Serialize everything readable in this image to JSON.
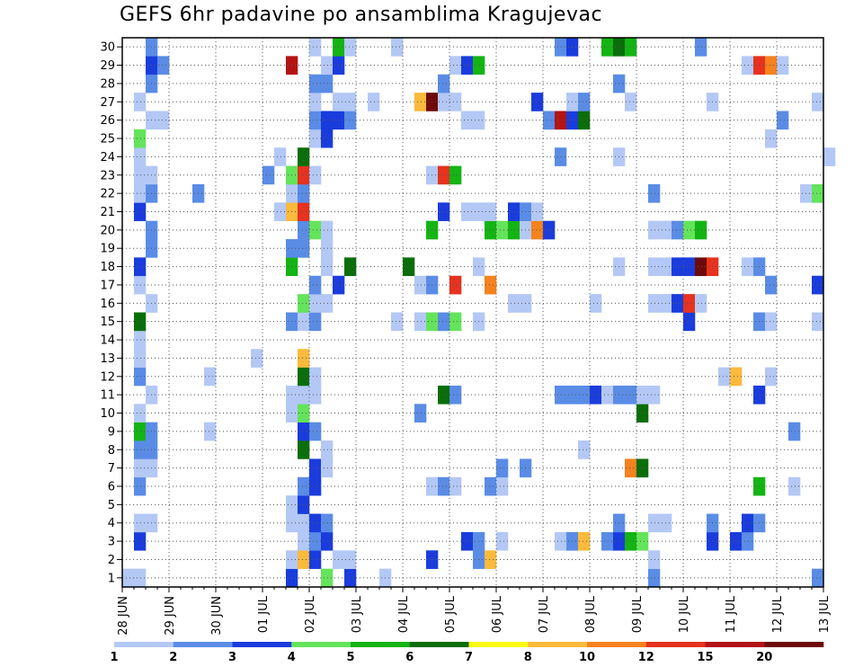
{
  "chart_data": {
    "type": "heatmap",
    "title": "GEFS 6hr padavine po ansamblima Kragujevac",
    "xlabel": "",
    "ylabel": "",
    "x_tick_labels": [
      "28 JUN",
      "29 JUN",
      "30 JUN",
      "01 JUL",
      "02 JUL",
      "03 JUL",
      "04 JUL",
      "05 JUL",
      "06 JUL",
      "07 JUL",
      "08 JUL",
      "09 JUL",
      "10 JUL",
      "11 JUL",
      "12 JUL",
      "13 JUL"
    ],
    "y_tick_labels": [
      "1",
      "2",
      "3",
      "4",
      "5",
      "6",
      "7",
      "8",
      "9",
      "10",
      "11",
      "12",
      "13",
      "14",
      "15",
      "16",
      "17",
      "18",
      "19",
      "20",
      "21",
      "22",
      "23",
      "24",
      "25",
      "26",
      "27",
      "28",
      "29",
      "30"
    ],
    "time_steps_per_day": 4,
    "xlim_steps": [
      0,
      60
    ],
    "ylim_members": [
      0,
      30
    ],
    "grid": true,
    "legend_position": "bottom",
    "legend": {
      "labels": [
        "1",
        "2",
        "3",
        "4",
        "5",
        "6",
        "7",
        "8",
        "10",
        "12",
        "15",
        "20"
      ],
      "colors": [
        "#b4c8f5",
        "#5a8ce6",
        "#1a3cdc",
        "#64e45a",
        "#14b414",
        "#0a6e0a",
        "#fafa14",
        "#faba3c",
        "#f5821e",
        "#e6321e",
        "#b41414",
        "#6e0a0a"
      ]
    },
    "cells": [
      [
        1,
        0,
        1
      ],
      [
        1,
        1,
        1
      ],
      [
        1,
        14,
        3
      ],
      [
        1,
        17,
        4
      ],
      [
        1,
        19,
        3
      ],
      [
        1,
        22,
        1
      ],
      [
        1,
        45,
        2
      ],
      [
        1,
        59,
        2
      ],
      [
        2,
        14,
        1
      ],
      [
        2,
        15,
        8
      ],
      [
        2,
        16,
        3
      ],
      [
        2,
        18,
        1
      ],
      [
        2,
        19,
        1
      ],
      [
        2,
        26,
        3
      ],
      [
        2,
        30,
        2
      ],
      [
        2,
        31,
        9
      ],
      [
        2,
        45,
        1
      ],
      [
        3,
        1,
        3
      ],
      [
        3,
        15,
        1
      ],
      [
        3,
        16,
        2
      ],
      [
        3,
        17,
        3
      ],
      [
        3,
        29,
        3
      ],
      [
        3,
        30,
        2
      ],
      [
        3,
        32,
        1
      ],
      [
        3,
        37,
        1
      ],
      [
        3,
        38,
        2
      ],
      [
        3,
        39,
        8
      ],
      [
        3,
        41,
        2
      ],
      [
        3,
        42,
        3
      ],
      [
        3,
        43,
        5
      ],
      [
        3,
        44,
        4
      ],
      [
        3,
        50,
        3
      ],
      [
        3,
        52,
        3
      ],
      [
        3,
        53,
        2
      ],
      [
        4,
        1,
        1
      ],
      [
        4,
        2,
        1
      ],
      [
        4,
        14,
        1
      ],
      [
        4,
        15,
        1
      ],
      [
        4,
        16,
        3
      ],
      [
        4,
        17,
        2
      ],
      [
        4,
        42,
        2
      ],
      [
        4,
        45,
        1
      ],
      [
        4,
        46,
        1
      ],
      [
        4,
        50,
        2
      ],
      [
        4,
        53,
        3
      ],
      [
        4,
        54,
        2
      ],
      [
        5,
        14,
        1
      ],
      [
        5,
        15,
        3
      ],
      [
        6,
        1,
        2
      ],
      [
        6,
        15,
        2
      ],
      [
        6,
        16,
        3
      ],
      [
        6,
        26,
        1
      ],
      [
        6,
        27,
        2
      ],
      [
        6,
        28,
        1
      ],
      [
        6,
        31,
        2
      ],
      [
        6,
        32,
        1
      ],
      [
        6,
        54,
        5
      ],
      [
        6,
        57,
        1
      ],
      [
        7,
        1,
        1
      ],
      [
        7,
        2,
        1
      ],
      [
        7,
        16,
        3
      ],
      [
        7,
        17,
        1
      ],
      [
        7,
        32,
        2
      ],
      [
        7,
        34,
        2
      ],
      [
        7,
        43,
        10
      ],
      [
        7,
        44,
        6
      ],
      [
        8,
        1,
        2
      ],
      [
        8,
        2,
        2
      ],
      [
        8,
        15,
        6
      ],
      [
        8,
        17,
        1
      ],
      [
        8,
        39,
        1
      ],
      [
        9,
        1,
        5
      ],
      [
        9,
        2,
        2
      ],
      [
        9,
        7,
        1
      ],
      [
        9,
        15,
        3
      ],
      [
        9,
        16,
        2
      ],
      [
        9,
        57,
        2
      ],
      [
        10,
        1,
        1
      ],
      [
        10,
        14,
        1
      ],
      [
        10,
        15,
        4
      ],
      [
        10,
        25,
        2
      ],
      [
        10,
        44,
        6
      ],
      [
        11,
        2,
        1
      ],
      [
        11,
        14,
        1
      ],
      [
        11,
        15,
        1
      ],
      [
        11,
        16,
        1
      ],
      [
        11,
        27,
        6
      ],
      [
        11,
        28,
        2
      ],
      [
        11,
        37,
        2
      ],
      [
        11,
        38,
        2
      ],
      [
        11,
        39,
        2
      ],
      [
        11,
        40,
        3
      ],
      [
        11,
        41,
        1
      ],
      [
        11,
        42,
        2
      ],
      [
        11,
        43,
        2
      ],
      [
        11,
        44,
        1
      ],
      [
        11,
        45,
        1
      ],
      [
        11,
        54,
        3
      ],
      [
        12,
        1,
        2
      ],
      [
        12,
        7,
        1
      ],
      [
        12,
        15,
        6
      ],
      [
        12,
        16,
        1
      ],
      [
        12,
        51,
        1
      ],
      [
        12,
        52,
        8
      ],
      [
        12,
        55,
        1
      ],
      [
        13,
        1,
        1
      ],
      [
        13,
        11,
        1
      ],
      [
        13,
        15,
        8
      ],
      [
        14,
        1,
        1
      ],
      [
        15,
        1,
        6
      ],
      [
        15,
        14,
        2
      ],
      [
        15,
        15,
        1
      ],
      [
        15,
        16,
        2
      ],
      [
        15,
        23,
        1
      ],
      [
        15,
        25,
        1
      ],
      [
        15,
        26,
        4
      ],
      [
        15,
        27,
        2
      ],
      [
        15,
        28,
        4
      ],
      [
        15,
        30,
        1
      ],
      [
        15,
        48,
        3
      ],
      [
        15,
        54,
        2
      ],
      [
        15,
        55,
        1
      ],
      [
        15,
        59,
        1
      ],
      [
        16,
        2,
        1
      ],
      [
        16,
        15,
        4
      ],
      [
        16,
        16,
        1
      ],
      [
        16,
        17,
        1
      ],
      [
        16,
        33,
        1
      ],
      [
        16,
        34,
        1
      ],
      [
        16,
        40,
        1
      ],
      [
        16,
        45,
        1
      ],
      [
        16,
        46,
        1
      ],
      [
        16,
        47,
        3
      ],
      [
        16,
        48,
        12
      ],
      [
        16,
        49,
        1
      ],
      [
        17,
        1,
        1
      ],
      [
        17,
        16,
        2
      ],
      [
        17,
        18,
        3
      ],
      [
        17,
        25,
        1
      ],
      [
        17,
        26,
        2
      ],
      [
        17,
        28,
        12
      ],
      [
        17,
        31,
        10
      ],
      [
        17,
        55,
        2
      ],
      [
        17,
        59,
        3
      ],
      [
        18,
        1,
        3
      ],
      [
        18,
        14,
        5
      ],
      [
        18,
        17,
        1
      ],
      [
        18,
        19,
        6
      ],
      [
        18,
        24,
        6
      ],
      [
        18,
        30,
        1
      ],
      [
        18,
        42,
        1
      ],
      [
        18,
        45,
        1
      ],
      [
        18,
        46,
        1
      ],
      [
        18,
        47,
        3
      ],
      [
        18,
        48,
        3
      ],
      [
        18,
        49,
        20
      ],
      [
        18,
        50,
        12
      ],
      [
        18,
        53,
        1
      ],
      [
        18,
        54,
        2
      ],
      [
        19,
        2,
        2
      ],
      [
        19,
        14,
        2
      ],
      [
        19,
        15,
        2
      ],
      [
        19,
        17,
        1
      ],
      [
        20,
        2,
        2
      ],
      [
        20,
        15,
        2
      ],
      [
        20,
        16,
        4
      ],
      [
        20,
        17,
        1
      ],
      [
        20,
        26,
        5
      ],
      [
        20,
        31,
        5
      ],
      [
        20,
        32,
        4
      ],
      [
        20,
        33,
        5
      ],
      [
        20,
        34,
        1
      ],
      [
        20,
        35,
        10
      ],
      [
        20,
        36,
        3
      ],
      [
        20,
        45,
        1
      ],
      [
        20,
        46,
        1
      ],
      [
        20,
        47,
        2
      ],
      [
        20,
        48,
        4
      ],
      [
        20,
        49,
        5
      ],
      [
        21,
        1,
        3
      ],
      [
        21,
        13,
        1
      ],
      [
        21,
        14,
        8
      ],
      [
        21,
        15,
        12
      ],
      [
        21,
        27,
        3
      ],
      [
        21,
        29,
        1
      ],
      [
        21,
        30,
        1
      ],
      [
        21,
        31,
        1
      ],
      [
        21,
        33,
        3
      ],
      [
        21,
        34,
        2
      ],
      [
        21,
        35,
        1
      ],
      [
        22,
        1,
        1
      ],
      [
        22,
        2,
        2
      ],
      [
        22,
        6,
        2
      ],
      [
        22,
        14,
        1
      ],
      [
        22,
        15,
        2
      ],
      [
        22,
        45,
        2
      ],
      [
        22,
        58,
        1
      ],
      [
        22,
        59,
        4
      ],
      [
        23,
        1,
        1
      ],
      [
        23,
        2,
        1
      ],
      [
        23,
        12,
        2
      ],
      [
        23,
        14,
        4
      ],
      [
        23,
        15,
        12
      ],
      [
        23,
        16,
        1
      ],
      [
        23,
        26,
        1
      ],
      [
        23,
        27,
        12
      ],
      [
        23,
        28,
        5
      ],
      [
        24,
        1,
        1
      ],
      [
        24,
        13,
        1
      ],
      [
        24,
        15,
        6
      ],
      [
        24,
        37,
        2
      ],
      [
        24,
        42,
        1
      ],
      [
        24,
        60,
        1
      ],
      [
        25,
        1,
        4
      ],
      [
        25,
        16,
        1
      ],
      [
        25,
        17,
        3
      ],
      [
        25,
        55,
        1
      ],
      [
        26,
        2,
        1
      ],
      [
        26,
        3,
        1
      ],
      [
        26,
        16,
        2
      ],
      [
        26,
        17,
        3
      ],
      [
        26,
        18,
        3
      ],
      [
        26,
        19,
        2
      ],
      [
        26,
        29,
        1
      ],
      [
        26,
        30,
        1
      ],
      [
        26,
        36,
        2
      ],
      [
        26,
        37,
        15
      ],
      [
        26,
        38,
        3
      ],
      [
        26,
        39,
        6
      ],
      [
        26,
        56,
        2
      ],
      [
        27,
        1,
        1
      ],
      [
        27,
        16,
        1
      ],
      [
        27,
        18,
        1
      ],
      [
        27,
        19,
        1
      ],
      [
        27,
        21,
        1
      ],
      [
        27,
        25,
        8
      ],
      [
        27,
        26,
        20
      ],
      [
        27,
        27,
        1
      ],
      [
        27,
        28,
        1
      ],
      [
        27,
        35,
        3
      ],
      [
        27,
        38,
        1
      ],
      [
        27,
        39,
        2
      ],
      [
        27,
        43,
        1
      ],
      [
        27,
        50,
        1
      ],
      [
        27,
        59,
        1
      ],
      [
        28,
        2,
        2
      ],
      [
        28,
        16,
        2
      ],
      [
        28,
        17,
        2
      ],
      [
        28,
        27,
        2
      ],
      [
        28,
        42,
        2
      ],
      [
        29,
        2,
        3
      ],
      [
        29,
        3,
        2
      ],
      [
        29,
        14,
        15
      ],
      [
        29,
        17,
        1
      ],
      [
        29,
        18,
        3
      ],
      [
        29,
        28,
        1
      ],
      [
        29,
        29,
        3
      ],
      [
        29,
        30,
        5
      ],
      [
        29,
        53,
        1
      ],
      [
        29,
        54,
        12
      ],
      [
        29,
        55,
        10
      ],
      [
        29,
        56,
        1
      ],
      [
        30,
        2,
        2
      ],
      [
        30,
        16,
        1
      ],
      [
        30,
        18,
        5
      ],
      [
        30,
        19,
        1
      ],
      [
        30,
        23,
        1
      ],
      [
        30,
        37,
        2
      ],
      [
        30,
        38,
        3
      ],
      [
        30,
        41,
        5
      ],
      [
        30,
        42,
        6
      ],
      [
        30,
        43,
        5
      ],
      [
        30,
        49,
        2
      ]
    ]
  }
}
